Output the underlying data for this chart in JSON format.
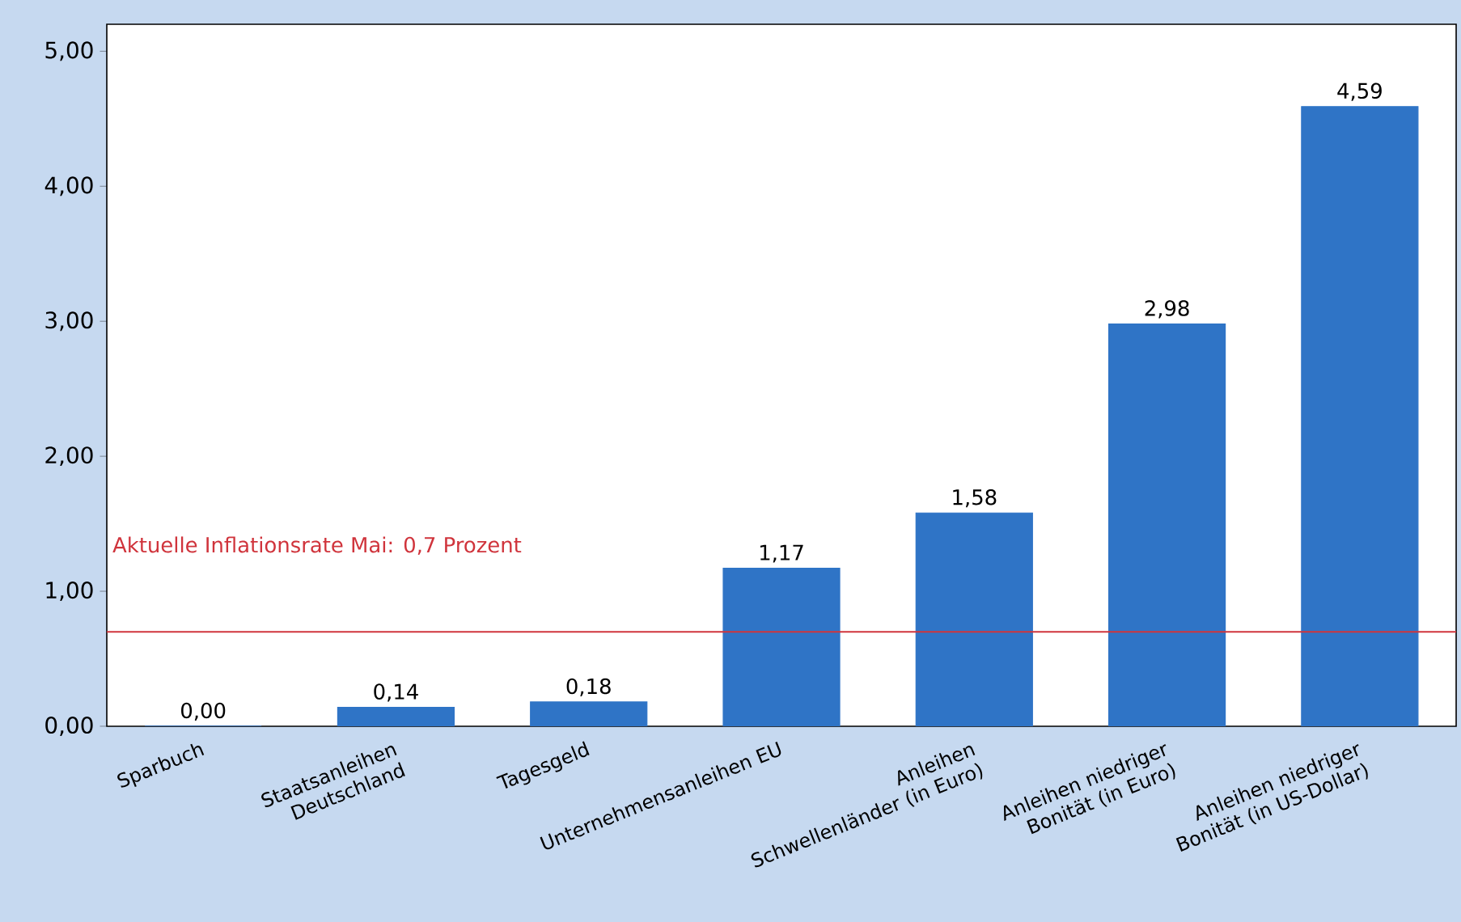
{
  "chart_data": {
    "type": "bar",
    "categories": [
      "Sparbuch",
      "Staatsanleihen Deutschland",
      "Tagesgeld",
      "Unternehmensanleihen EU",
      "Anleihen Schwellenländer (in Euro)",
      "Anleihen niedriger Bonität (in Euro)",
      "Anleihen niedriger Bonität (in US-Dollar)"
    ],
    "values": [
      0.0,
      0.14,
      0.18,
      1.17,
      1.58,
      2.98,
      4.59
    ],
    "value_labels": [
      "0,00",
      "0,14",
      "0,18",
      "1,17",
      "1,58",
      "2,98",
      "4,59"
    ],
    "color": "#2f74c6",
    "ylim": [
      0,
      5.2
    ],
    "yticks": [
      {
        "value": 0,
        "label": "0,00"
      },
      {
        "value": 1,
        "label": "1,00"
      },
      {
        "value": 2,
        "label": "2,00"
      },
      {
        "value": 3,
        "label": "3,00"
      },
      {
        "value": 4,
        "label": "4,00"
      },
      {
        "value": 5,
        "label": "5,00"
      }
    ],
    "ref_lines": [
      {
        "axis": "y",
        "value": 0.7,
        "label": "Aktuelle Inflationsrate Mai: 0,7 Prozent",
        "color": "#d0343c"
      }
    ],
    "grid": false
  }
}
